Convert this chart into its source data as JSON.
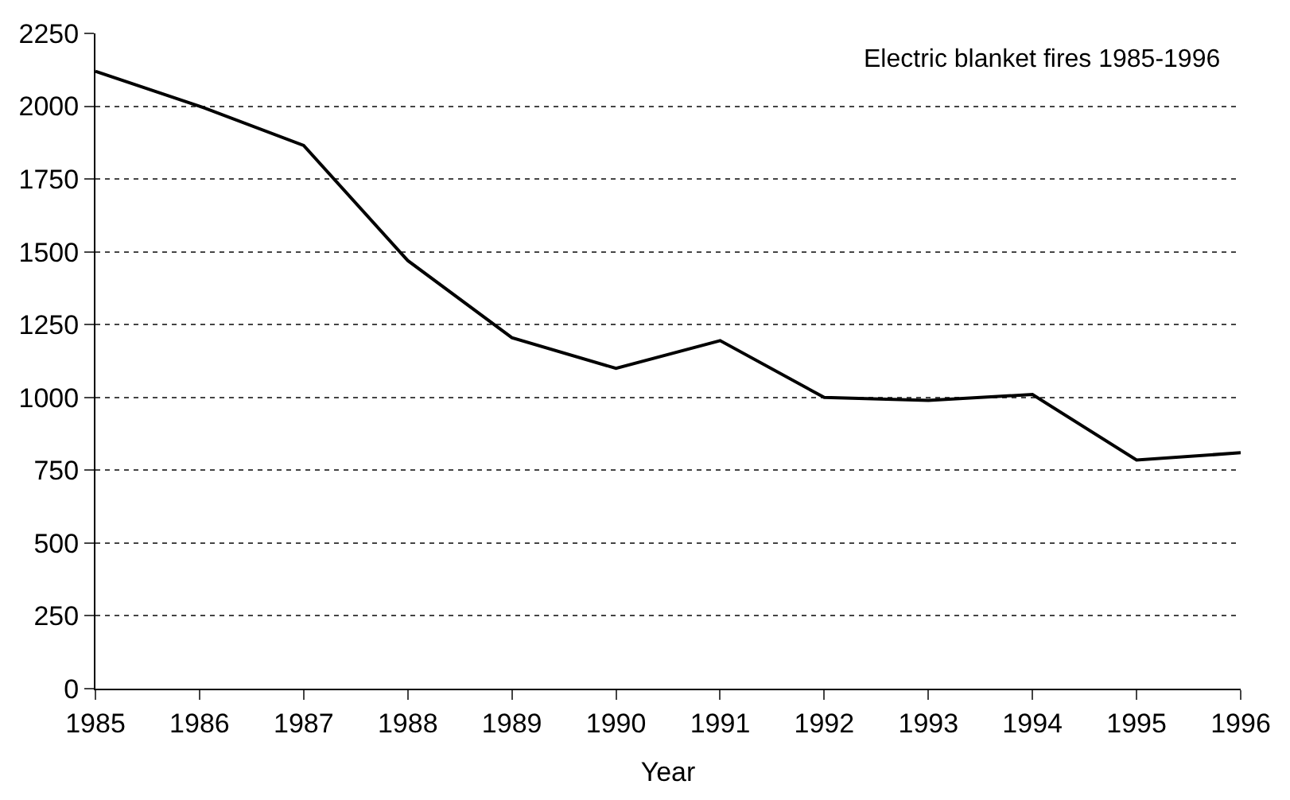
{
  "chart_data": {
    "type": "line",
    "xlabel": "Year",
    "annotations": [
      "Electric blanket fires 1985-1996"
    ],
    "x": [
      1985,
      1986,
      1987,
      1988,
      1989,
      1990,
      1991,
      1992,
      1993,
      1994,
      1995,
      1996
    ],
    "series": [
      {
        "color": "#000000",
        "values": [
          2120,
          2000,
          1865,
          1470,
          1205,
          1100,
          1195,
          1000,
          990,
          1010,
          785,
          810
        ]
      }
    ],
    "xlim": [
      1985,
      1996
    ],
    "xticks": [
      1985,
      1986,
      1987,
      1988,
      1989,
      1990,
      1991,
      1992,
      1993,
      1994,
      1995,
      1996
    ],
    "ylim": [
      0,
      2250
    ],
    "yticks": [
      0,
      250,
      500,
      750,
      1000,
      1250,
      1500,
      1750,
      2000,
      2250
    ],
    "grid": "y",
    "marker": "none",
    "line_style": "solid"
  }
}
